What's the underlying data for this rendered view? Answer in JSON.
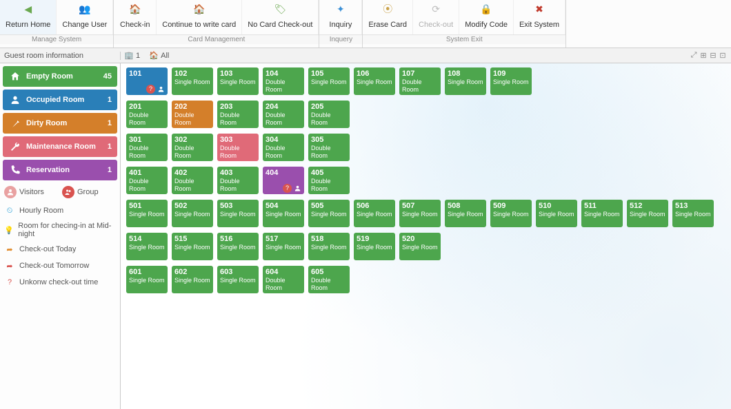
{
  "colors": {
    "empty": "#4da64d",
    "occupied": "#2a7fb8",
    "dirty": "#d47f2a",
    "maintenance": "#e06a78",
    "reservation": "#9a4fad",
    "ribbon_text": "#3a5a7a"
  },
  "ribbon": {
    "groups": [
      {
        "label": "Manage System",
        "items": [
          {
            "id": "return-home",
            "label": "Return Home",
            "icon": "◀",
            "icon_color": "#6aa84f"
          },
          {
            "id": "change-user",
            "label": "Change User",
            "icon": "👥",
            "icon_color": "#8aa0b4"
          }
        ]
      },
      {
        "label": "Card Management",
        "items": [
          {
            "id": "check-in",
            "label": "Check-in",
            "icon": "🏠",
            "icon_color": "#8aa0b4"
          },
          {
            "id": "continue-write",
            "label": "Continue to write card",
            "icon": "🏠",
            "icon_color": "#8aa0b4"
          },
          {
            "id": "no-card-checkout",
            "label": "No Card Check-out",
            "icon": "🏷",
            "icon_color": "#6aa84f"
          }
        ]
      },
      {
        "label": "Inquery",
        "items": [
          {
            "id": "inquiry",
            "label": "Inquiry",
            "icon": "✦",
            "icon_color": "#3a8fd6"
          }
        ]
      },
      {
        "label": "System Exit",
        "items": [
          {
            "id": "erase-card",
            "label": "Erase Card",
            "icon": "⦿",
            "icon_color": "#caa24a"
          },
          {
            "id": "check-out",
            "label": "Check-out",
            "icon": "⟳",
            "icon_color": "#c0c0c0",
            "disabled": true
          },
          {
            "id": "modify-code",
            "label": "Modify Code",
            "icon": "🔒",
            "icon_color": "#c0392b"
          },
          {
            "id": "exit-system",
            "label": "Exit System",
            "icon": "✖",
            "icon_color": "#c0392b"
          }
        ]
      }
    ]
  },
  "secondary": {
    "left": "Guest room information",
    "floor_label": "1",
    "all_label": "All"
  },
  "sidebar": {
    "bands": [
      {
        "id": "empty",
        "label": "Empty Room",
        "count": 45,
        "color": "#4da64d",
        "icon": "home"
      },
      {
        "id": "occupied",
        "label": "Occupied Room",
        "count": 1,
        "color": "#2a7fb8",
        "icon": "person"
      },
      {
        "id": "dirty",
        "label": "Dirty Room",
        "count": 1,
        "color": "#d47f2a",
        "icon": "broom"
      },
      {
        "id": "maintenance",
        "label": "Maintenance Room",
        "count": 1,
        "color": "#e06a78",
        "icon": "wrench"
      },
      {
        "id": "reservation",
        "label": "Reservation",
        "count": 1,
        "color": "#9a4fad",
        "icon": "phone"
      }
    ],
    "visitors_group": {
      "visitors": "Visitors",
      "group": "Group",
      "visitors_color": "#e9a1a1",
      "group_color": "#d9534f"
    },
    "list": [
      {
        "id": "hourly",
        "label": "Hourly Room",
        "icon_color": "#2a9fd6",
        "glyph": "⏲"
      },
      {
        "id": "midnight",
        "label": "Room for checing-in at Mid-night",
        "icon_color": "#888888",
        "glyph": "💡"
      },
      {
        "id": "co-today",
        "label": "Check-out Today",
        "icon_color": "#e08a2a",
        "glyph": "➦"
      },
      {
        "id": "co-tomorrow",
        "label": "Check-out Tomorrow",
        "icon_color": "#d9534f",
        "glyph": "➦"
      },
      {
        "id": "co-unknown",
        "label": "Unkonw check-out time",
        "icon_color": "#d9534f",
        "glyph": "?"
      }
    ]
  },
  "rooms": {
    "floors": [
      [
        {
          "num": "101",
          "type": "",
          "state": "occupied",
          "icons": [
            "help",
            "person"
          ]
        },
        {
          "num": "102",
          "type": "Single Room",
          "state": "empty"
        },
        {
          "num": "103",
          "type": "Single Room",
          "state": "empty"
        },
        {
          "num": "104",
          "type": "Double Room",
          "state": "empty"
        },
        {
          "num": "105",
          "type": "Single Room",
          "state": "empty"
        },
        {
          "num": "106",
          "type": "Single Room",
          "state": "empty"
        },
        {
          "num": "107",
          "type": "Double Room",
          "state": "empty"
        },
        {
          "num": "108",
          "type": "Single Room",
          "state": "empty"
        },
        {
          "num": "109",
          "type": "Single Room",
          "state": "empty"
        }
      ],
      [
        {
          "num": "201",
          "type": "Double Room",
          "state": "empty"
        },
        {
          "num": "202",
          "type": "Double Room",
          "state": "dirty"
        },
        {
          "num": "203",
          "type": "Double Room",
          "state": "empty"
        },
        {
          "num": "204",
          "type": "Double Room",
          "state": "empty"
        },
        {
          "num": "205",
          "type": "Double Room",
          "state": "empty"
        }
      ],
      [
        {
          "num": "301",
          "type": "Double Room",
          "state": "empty"
        },
        {
          "num": "302",
          "type": "Double Room",
          "state": "empty"
        },
        {
          "num": "303",
          "type": "Double Room",
          "state": "maintenance"
        },
        {
          "num": "304",
          "type": "Double Room",
          "state": "empty"
        },
        {
          "num": "305",
          "type": "Double Room",
          "state": "empty"
        }
      ],
      [
        {
          "num": "401",
          "type": "Double Room",
          "state": "empty"
        },
        {
          "num": "402",
          "type": "Double Room",
          "state": "empty"
        },
        {
          "num": "403",
          "type": "Double Room",
          "state": "empty"
        },
        {
          "num": "404",
          "type": "",
          "state": "reservation",
          "icons": [
            "help",
            "person"
          ]
        },
        {
          "num": "405",
          "type": "Double Room",
          "state": "empty"
        }
      ],
      [
        {
          "num": "501",
          "type": "Single Room",
          "state": "empty"
        },
        {
          "num": "502",
          "type": "Single Room",
          "state": "empty"
        },
        {
          "num": "503",
          "type": "Single Room",
          "state": "empty"
        },
        {
          "num": "504",
          "type": "Single Room",
          "state": "empty"
        },
        {
          "num": "505",
          "type": "Single Room",
          "state": "empty"
        },
        {
          "num": "506",
          "type": "Single Room",
          "state": "empty"
        },
        {
          "num": "507",
          "type": "Single Room",
          "state": "empty"
        },
        {
          "num": "508",
          "type": "Single Room",
          "state": "empty"
        },
        {
          "num": "509",
          "type": "Single Room",
          "state": "empty"
        },
        {
          "num": "510",
          "type": "Single Room",
          "state": "empty"
        },
        {
          "num": "511",
          "type": "Single Room",
          "state": "empty"
        },
        {
          "num": "512",
          "type": "Single Room",
          "state": "empty"
        },
        {
          "num": "513",
          "type": "Single Room",
          "state": "empty"
        }
      ],
      [
        {
          "num": "514",
          "type": "Single Room",
          "state": "empty"
        },
        {
          "num": "515",
          "type": "Single Room",
          "state": "empty"
        },
        {
          "num": "516",
          "type": "Single Room",
          "state": "empty"
        },
        {
          "num": "517",
          "type": "Single Room",
          "state": "empty"
        },
        {
          "num": "518",
          "type": "Single Room",
          "state": "empty"
        },
        {
          "num": "519",
          "type": "Single Room",
          "state": "empty"
        },
        {
          "num": "520",
          "type": "Single Room",
          "state": "empty"
        }
      ],
      [
        {
          "num": "601",
          "type": "Single Room",
          "state": "empty"
        },
        {
          "num": "602",
          "type": "Single Room",
          "state": "empty"
        },
        {
          "num": "603",
          "type": "Single Room",
          "state": "empty"
        },
        {
          "num": "604",
          "type": "Double Room",
          "state": "empty"
        },
        {
          "num": "605",
          "type": "Double Room",
          "state": "empty"
        }
      ]
    ]
  }
}
